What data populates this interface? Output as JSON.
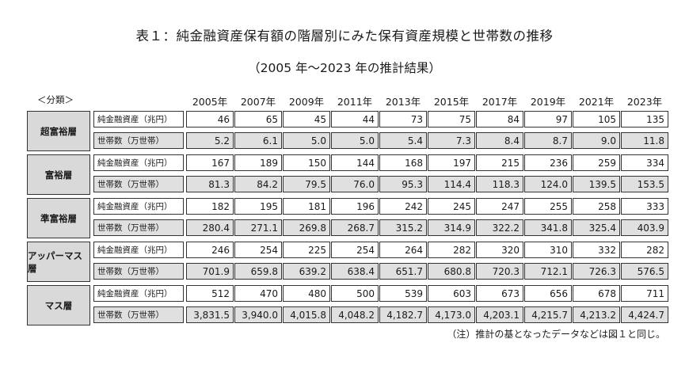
{
  "title": "表１：純金融資産保有額の階層別にみた保有資産規模と世帯数の推移",
  "subtitle": "（2005 年～2023 年の推計結果）",
  "bunrui_label": "＜分類＞",
  "years": [
    "2005年",
    "2007年",
    "2009年",
    "2011年",
    "2013年",
    "2015年",
    "2017年",
    "2019年",
    "2021年",
    "2023年"
  ],
  "row_labels": {
    "assets": "純金融資産（兆円）",
    "households": "世帯数（万世帯）"
  },
  "groups": [
    {
      "name": "超富裕層",
      "assets": [
        "46",
        "65",
        "45",
        "44",
        "73",
        "75",
        "84",
        "97",
        "105",
        "135"
      ],
      "households": [
        "5.2",
        "6.1",
        "5.0",
        "5.0",
        "5.4",
        "7.3",
        "8.4",
        "8.7",
        "9.0",
        "11.8"
      ]
    },
    {
      "name": "富裕層",
      "assets": [
        "167",
        "189",
        "150",
        "144",
        "168",
        "197",
        "215",
        "236",
        "259",
        "334"
      ],
      "households": [
        "81.3",
        "84.2",
        "79.5",
        "76.0",
        "95.3",
        "114.4",
        "118.3",
        "124.0",
        "139.5",
        "153.5"
      ]
    },
    {
      "name": "準富裕層",
      "assets": [
        "182",
        "195",
        "181",
        "196",
        "242",
        "245",
        "247",
        "255",
        "258",
        "333"
      ],
      "households": [
        "280.4",
        "271.1",
        "269.8",
        "268.7",
        "315.2",
        "314.9",
        "322.2",
        "341.8",
        "325.4",
        "403.9"
      ]
    },
    {
      "name": "アッパーマス層",
      "assets": [
        "246",
        "254",
        "225",
        "254",
        "264",
        "282",
        "320",
        "310",
        "332",
        "282"
      ],
      "households": [
        "701.9",
        "659.8",
        "639.2",
        "638.4",
        "651.7",
        "680.8",
        "720.3",
        "712.1",
        "726.3",
        "576.5"
      ]
    },
    {
      "name": "マス層",
      "assets": [
        "512",
        "470",
        "480",
        "500",
        "539",
        "603",
        "673",
        "656",
        "678",
        "711"
      ],
      "households": [
        "3,831.5",
        "3,940.0",
        "4,015.8",
        "4,048.2",
        "4,182.7",
        "4,173.0",
        "4,203.1",
        "4,215.7",
        "4,213.2",
        "4,424.7"
      ]
    }
  ],
  "note": "（注）推計の基となったデータなどは図１と同じ。"
}
